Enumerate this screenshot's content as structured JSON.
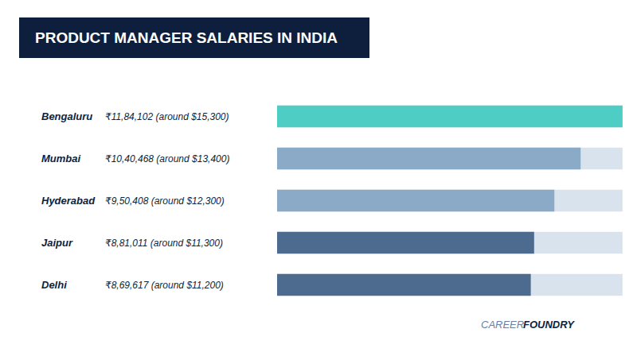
{
  "chart_data": {
    "type": "bar",
    "orientation": "horizontal",
    "title": "PRODUCT MANAGER SALARIES IN INDIA",
    "categories": [
      "Bengaluru",
      "Mumbai",
      "Hyderabad",
      "Jaipur",
      "Delhi"
    ],
    "values": [
      1184102,
      1040468,
      950408,
      881011,
      869617
    ],
    "value_labels": [
      "₹11,84,102 (around $15,300)",
      "₹10,40,468 (around $13,400)",
      "₹9,50,408 (around $12,300)",
      "₹8,81,011 (around $11,300)",
      "₹8,69,617 (around $11,200)"
    ],
    "max_value": 1184102,
    "colors": [
      "#4ecdc4",
      "#8baac7",
      "#8baac7",
      "#4d6a8f",
      "#4d6a8f"
    ],
    "xlim": [
      0,
      1190022.51
    ],
    "tick_labels": false,
    "grid": false,
    "annotations": [
      "CAREER",
      "FOUNDRY"
    ]
  }
}
